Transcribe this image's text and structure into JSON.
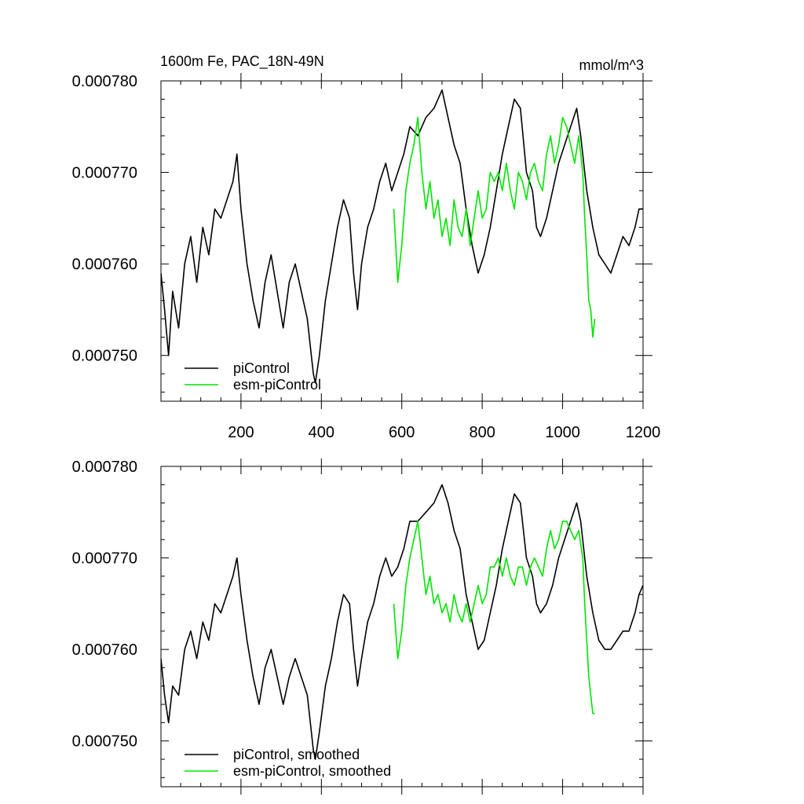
{
  "header": {
    "title": "1600m Fe, PAC_18N-49N",
    "units": "mmol/m^3"
  },
  "colors": {
    "piControl": "#000000",
    "esm_piControl": "#00e600",
    "axis": "#000000",
    "background": "#ffffff"
  },
  "chart_data": [
    {
      "type": "line",
      "title": "1600m Fe, PAC_18N-49N",
      "units": "mmol/m^3",
      "xlim": [
        1,
        1200
      ],
      "ylim": [
        0.000745,
        0.00078
      ],
      "x_ticks": [
        200,
        400,
        600,
        800,
        1000,
        1200
      ],
      "x_tick_labels": [
        "200",
        "400",
        "600",
        "800",
        "1000",
        "1200"
      ],
      "y_ticks": [
        0.00075,
        0.00076,
        0.00077,
        0.00078
      ],
      "y_tick_labels": [
        "0.000750",
        "0.000760",
        "0.000770",
        "0.000780"
      ],
      "grid": false,
      "legend_position": "bottom-left",
      "series": [
        {
          "name": "piControl",
          "color": "#000000",
          "x": [
            1,
            10,
            20,
            30,
            45,
            60,
            75,
            90,
            105,
            120,
            135,
            150,
            165,
            180,
            190,
            200,
            215,
            230,
            245,
            260,
            275,
            290,
            305,
            320,
            335,
            350,
            365,
            380,
            385,
            395,
            410,
            425,
            440,
            455,
            470,
            480,
            490,
            500,
            515,
            530,
            545,
            560,
            575,
            590,
            605,
            620,
            640,
            660,
            680,
            700,
            715,
            730,
            745,
            760,
            775,
            790,
            805,
            820,
            835,
            850,
            865,
            880,
            895,
            910,
            925,
            935,
            945,
            960,
            975,
            990,
            1005,
            1020,
            1035,
            1045,
            1060,
            1075,
            1090,
            1105,
            1120,
            1135,
            1150,
            1165,
            1180,
            1190,
            1200
          ],
          "y": [
            0.000759,
            0.000755,
            0.00075,
            0.000757,
            0.000753,
            0.00076,
            0.000763,
            0.000758,
            0.000764,
            0.000761,
            0.000766,
            0.000765,
            0.000767,
            0.000769,
            0.000772,
            0.000766,
            0.00076,
            0.000756,
            0.000753,
            0.000758,
            0.000761,
            0.000757,
            0.000753,
            0.000758,
            0.00076,
            0.000757,
            0.000754,
            0.000748,
            0.000747,
            0.00075,
            0.000756,
            0.00076,
            0.000764,
            0.000767,
            0.000765,
            0.000759,
            0.000755,
            0.00076,
            0.000764,
            0.000766,
            0.000769,
            0.000771,
            0.000768,
            0.00077,
            0.000772,
            0.000775,
            0.000774,
            0.000776,
            0.000777,
            0.000779,
            0.000776,
            0.000773,
            0.000771,
            0.000766,
            0.000762,
            0.000759,
            0.000761,
            0.000764,
            0.000768,
            0.000772,
            0.000775,
            0.000778,
            0.000777,
            0.00077,
            0.000768,
            0.000764,
            0.000763,
            0.000765,
            0.000768,
            0.000771,
            0.000773,
            0.000775,
            0.000777,
            0.000774,
            0.000768,
            0.000764,
            0.000761,
            0.00076,
            0.000759,
            0.000761,
            0.000763,
            0.000762,
            0.000764,
            0.000766,
            0.000766
          ]
        },
        {
          "name": "esm-piControl",
          "color": "#00e600",
          "x": [
            580,
            590,
            600,
            610,
            620,
            630,
            640,
            650,
            660,
            670,
            680,
            690,
            700,
            710,
            720,
            730,
            740,
            750,
            760,
            770,
            780,
            790,
            800,
            810,
            820,
            830,
            840,
            850,
            860,
            870,
            880,
            890,
            900,
            910,
            920,
            930,
            940,
            950,
            960,
            970,
            980,
            990,
            1000,
            1010,
            1020,
            1030,
            1040,
            1050,
            1055,
            1060,
            1065,
            1070,
            1075,
            1080
          ],
          "y": [
            0.000766,
            0.000758,
            0.000762,
            0.000768,
            0.000771,
            0.000773,
            0.000776,
            0.00077,
            0.000766,
            0.000769,
            0.000765,
            0.000767,
            0.000763,
            0.000765,
            0.000762,
            0.000767,
            0.000764,
            0.000763,
            0.000766,
            0.000762,
            0.000765,
            0.000768,
            0.000765,
            0.000766,
            0.00077,
            0.000769,
            0.00077,
            0.000768,
            0.000771,
            0.000768,
            0.000766,
            0.00077,
            0.000769,
            0.000767,
            0.00077,
            0.000771,
            0.000769,
            0.000768,
            0.000772,
            0.000774,
            0.000771,
            0.000773,
            0.000776,
            0.000775,
            0.000773,
            0.000771,
            0.000774,
            0.00077,
            0.000765,
            0.000761,
            0.000756,
            0.000755,
            0.000752,
            0.000754
          ]
        }
      ],
      "legend_entries": [
        "piControl",
        "esm-piControl"
      ]
    },
    {
      "type": "line",
      "xlim": [
        1,
        1200
      ],
      "ylim": [
        0.000745,
        0.00078
      ],
      "y_ticks": [
        0.00075,
        0.00076,
        0.00077,
        0.00078
      ],
      "y_tick_labels": [
        "0.000750",
        "0.000760",
        "0.000770",
        "0.000780"
      ],
      "grid": false,
      "legend_position": "bottom-left",
      "series": [
        {
          "name": "piControl, smoothed",
          "color": "#000000",
          "x": [
            1,
            10,
            20,
            30,
            45,
            60,
            75,
            90,
            105,
            120,
            135,
            150,
            165,
            180,
            190,
            200,
            215,
            230,
            245,
            260,
            275,
            290,
            305,
            320,
            335,
            350,
            365,
            380,
            385,
            395,
            410,
            425,
            440,
            455,
            470,
            480,
            490,
            500,
            515,
            530,
            545,
            560,
            575,
            590,
            605,
            620,
            640,
            660,
            680,
            700,
            715,
            730,
            745,
            760,
            775,
            790,
            805,
            820,
            835,
            850,
            865,
            880,
            895,
            910,
            925,
            935,
            945,
            960,
            975,
            990,
            1005,
            1020,
            1035,
            1045,
            1060,
            1075,
            1090,
            1105,
            1120,
            1135,
            1150,
            1165,
            1180,
            1190,
            1200
          ],
          "y": [
            0.000759,
            0.000755,
            0.000752,
            0.000756,
            0.000755,
            0.00076,
            0.000762,
            0.000759,
            0.000763,
            0.000761,
            0.000765,
            0.000764,
            0.000766,
            0.000768,
            0.00077,
            0.000766,
            0.000761,
            0.000757,
            0.000754,
            0.000758,
            0.00076,
            0.000757,
            0.000754,
            0.000757,
            0.000759,
            0.000757,
            0.000755,
            0.000749,
            0.000748,
            0.000751,
            0.000756,
            0.000759,
            0.000763,
            0.000766,
            0.000765,
            0.00076,
            0.000756,
            0.000759,
            0.000763,
            0.000765,
            0.000768,
            0.00077,
            0.000768,
            0.000769,
            0.000771,
            0.000774,
            0.000774,
            0.000775,
            0.000776,
            0.000778,
            0.000776,
            0.000773,
            0.000771,
            0.000766,
            0.000763,
            0.00076,
            0.000761,
            0.000764,
            0.000767,
            0.000771,
            0.000774,
            0.000777,
            0.000776,
            0.00077,
            0.000768,
            0.000765,
            0.000764,
            0.000765,
            0.000767,
            0.00077,
            0.000772,
            0.000774,
            0.000776,
            0.000774,
            0.000768,
            0.000764,
            0.000761,
            0.00076,
            0.00076,
            0.000761,
            0.000762,
            0.000762,
            0.000764,
            0.000766,
            0.000767
          ]
        },
        {
          "name": "esm-piControl, smoothed",
          "color": "#00e600",
          "x": [
            580,
            590,
            600,
            610,
            620,
            630,
            640,
            650,
            660,
            670,
            680,
            690,
            700,
            710,
            720,
            730,
            740,
            750,
            760,
            770,
            780,
            790,
            800,
            810,
            820,
            830,
            840,
            850,
            860,
            870,
            880,
            890,
            900,
            910,
            920,
            930,
            940,
            950,
            960,
            970,
            980,
            990,
            1000,
            1010,
            1020,
            1030,
            1040,
            1050,
            1055,
            1060,
            1065,
            1070,
            1075,
            1080
          ],
          "y": [
            0.000765,
            0.000759,
            0.000762,
            0.000767,
            0.00077,
            0.000772,
            0.000774,
            0.00077,
            0.000766,
            0.000768,
            0.000765,
            0.000766,
            0.000764,
            0.000765,
            0.000763,
            0.000766,
            0.000764,
            0.000763,
            0.000765,
            0.000763,
            0.000765,
            0.000767,
            0.000765,
            0.000766,
            0.000769,
            0.000769,
            0.00077,
            0.000768,
            0.00077,
            0.000768,
            0.000767,
            0.000769,
            0.000769,
            0.000767,
            0.000769,
            0.00077,
            0.000769,
            0.000768,
            0.000771,
            0.000773,
            0.000771,
            0.000772,
            0.000774,
            0.000774,
            0.000773,
            0.000772,
            0.000773,
            0.00077,
            0.000765,
            0.000761,
            0.000757,
            0.000755,
            0.000753,
            0.000753
          ]
        }
      ],
      "legend_entries": [
        "piControl, smoothed",
        "esm-piControl, smoothed"
      ]
    }
  ]
}
